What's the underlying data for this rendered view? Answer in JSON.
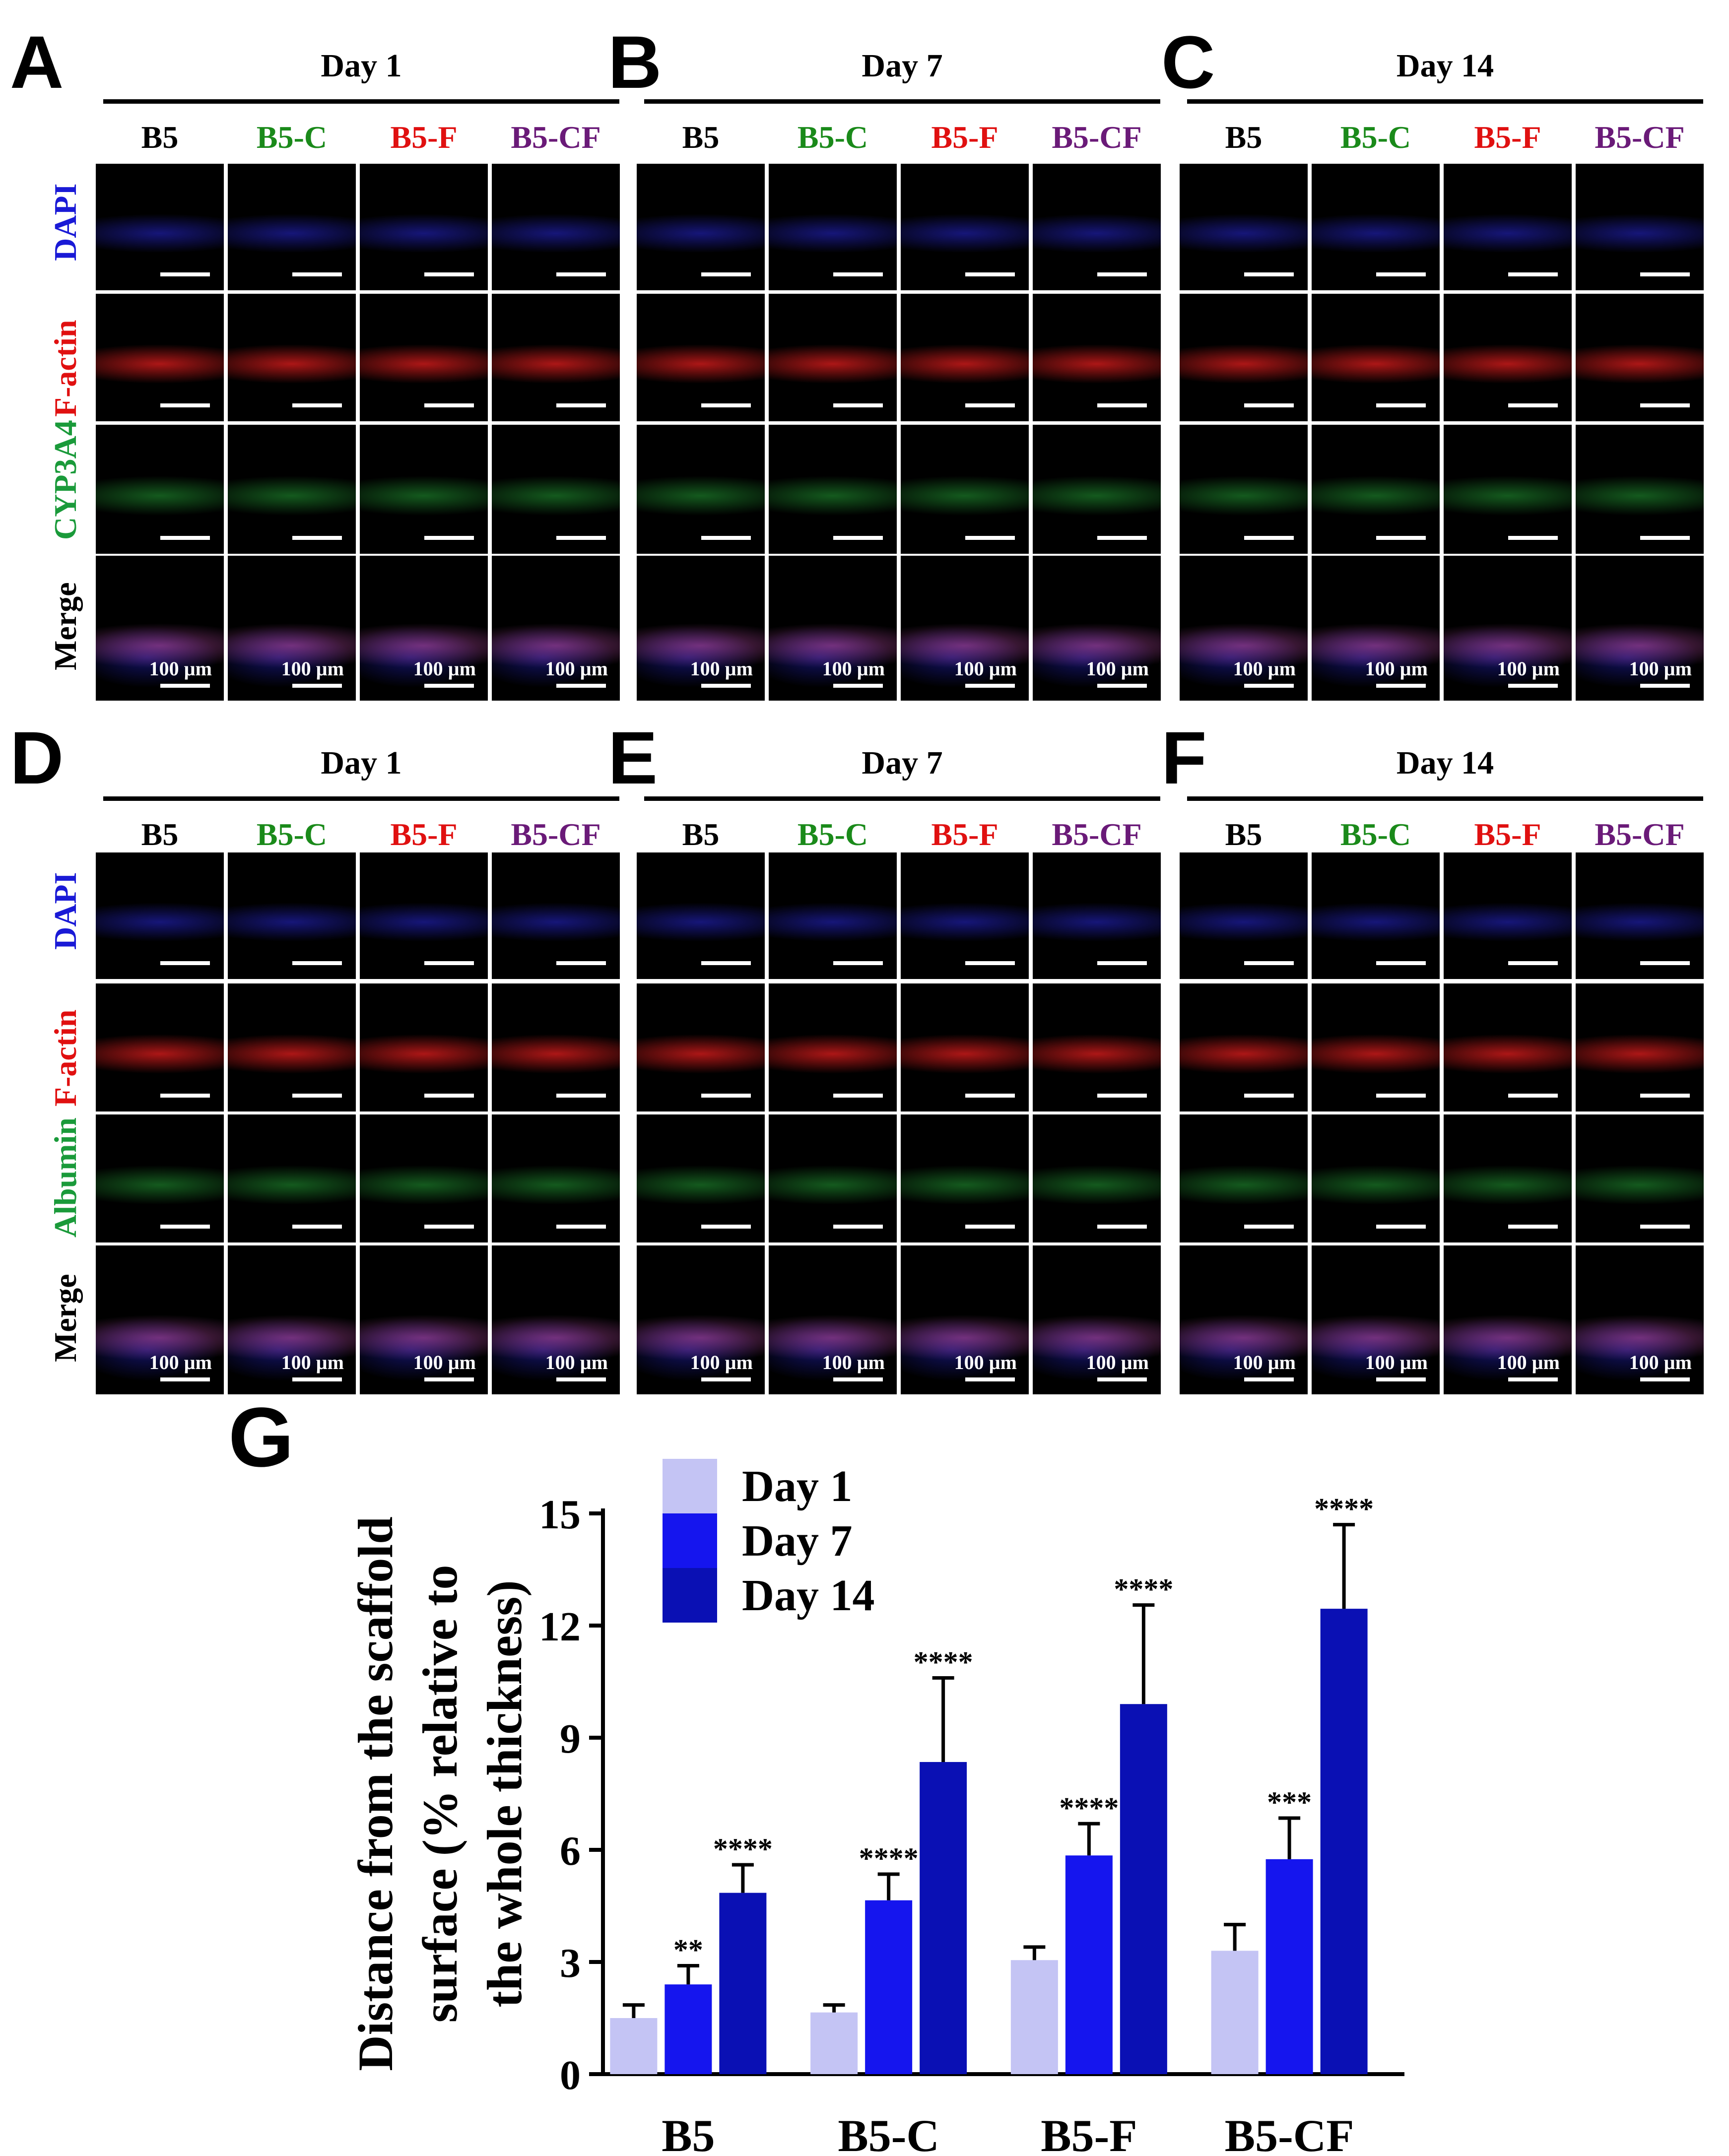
{
  "colors": {
    "B5": "#000000",
    "B5-C": "#1a8a1a",
    "B5-F": "#e01010",
    "B5-CF": "#6a1a78",
    "DAPI": "#1a1ad6",
    "F-actin": "#e01010",
    "CYP3A4": "#1a9a3a",
    "Albumin": "#1a9a3a",
    "Merge": "#000000"
  },
  "figure": {
    "groups": [
      "B5",
      "B5-C",
      "B5-F",
      "B5-CF"
    ],
    "scale_bar_label": "100 µm",
    "row_labels_top": [
      "DAPI",
      "F-actin",
      "CYP3A4",
      "Merge"
    ],
    "row_labels_bottom": [
      "DAPI",
      "F-actin",
      "Albumin",
      "Merge"
    ],
    "panels": [
      {
        "letter": "A",
        "day": "Day 1"
      },
      {
        "letter": "B",
        "day": "Day 7"
      },
      {
        "letter": "C",
        "day": "Day 14"
      },
      {
        "letter": "D",
        "day": "Day 1"
      },
      {
        "letter": "E",
        "day": "Day 7"
      },
      {
        "letter": "F",
        "day": "Day 14"
      }
    ]
  },
  "chart_data": {
    "type": "bar",
    "panel_letter": "G",
    "ylabel_lines": [
      "Distance from the scaffold",
      "surface (% relative to",
      "the whole thickness)"
    ],
    "categories": [
      "B5",
      "B5-C",
      "B5-F",
      "B5-CF"
    ],
    "ylim": [
      0,
      15
    ],
    "yticks": [
      "0",
      "3",
      "6",
      "9",
      "12",
      "15"
    ],
    "legend_position": "top-left",
    "series": [
      {
        "name": "Day 1",
        "color": "#c4c4f4",
        "values": [
          1.5,
          1.65,
          3.05,
          3.3
        ],
        "errors": [
          0.35,
          0.2,
          0.35,
          0.7
        ],
        "sig": [
          "",
          "",
          "",
          ""
        ]
      },
      {
        "name": "Day 7",
        "color": "#1515ee",
        "values": [
          2.4,
          4.65,
          5.85,
          5.75
        ],
        "errors": [
          0.5,
          0.7,
          0.85,
          1.1
        ],
        "sig": [
          "**",
          "****",
          "****",
          "***"
        ]
      },
      {
        "name": "Day 14",
        "color": "#0a10b4",
        "values": [
          4.85,
          8.35,
          9.9,
          12.45
        ],
        "errors": [
          0.75,
          2.25,
          2.65,
          2.25
        ],
        "sig": [
          "****",
          "****",
          "****",
          "****"
        ]
      }
    ]
  }
}
